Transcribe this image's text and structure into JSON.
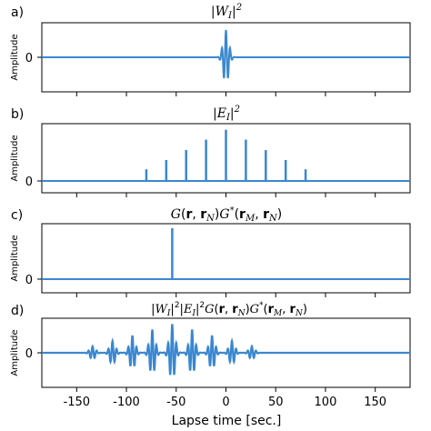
{
  "chart_data": [
    {
      "type": "line",
      "panel_label": "a)",
      "title": "|W_I|^2",
      "ylabel": "Amplitude",
      "yticks": [
        "0"
      ],
      "xlim": [
        -185,
        185
      ],
      "color": "#3a87d0",
      "wavelet": {
        "center": 0,
        "amplitude": 1.0,
        "period": 4.2,
        "envelope_width": 2.8,
        "scale": 0.55
      }
    },
    {
      "type": "bar",
      "panel_label": "b)",
      "title": "|E_I|^2",
      "ylabel": "Amplitude",
      "yticks": [
        "0"
      ],
      "xlim": [
        -185,
        185
      ],
      "color": "#3a87d0",
      "x": [
        -80,
        -60,
        -40,
        -20,
        0,
        20,
        40,
        60,
        80
      ],
      "values": [
        0.2,
        0.36,
        0.53,
        0.71,
        0.88,
        0.71,
        0.53,
        0.36,
        0.2
      ]
    },
    {
      "type": "bar",
      "panel_label": "c)",
      "title": "G(r, r_N)G*(r_M, r_N)",
      "ylabel": "Amplitude",
      "yticks": [
        "0"
      ],
      "xlim": [
        -185,
        185
      ],
      "color": "#3a87d0",
      "x": [
        -54
      ],
      "values": [
        1.0
      ]
    },
    {
      "type": "line",
      "panel_label": "d)",
      "title": "|W_I|^2|E_I|^2G(r, r_N)G*(r_M, r_N)",
      "ylabel": "Amplitude",
      "yticks": [
        "0"
      ],
      "xlim": [
        -185,
        185
      ],
      "xlabel": "Lapse time [sec.]",
      "xticks": [
        -150,
        -100,
        -50,
        0,
        50,
        100,
        150
      ],
      "xtick_labels": [
        "-150",
        "-100",
        "-50",
        "0",
        "50",
        "100",
        "150"
      ],
      "color": "#3a87d0",
      "wavelet_centers": [
        -134,
        -114,
        -94,
        -74,
        -54,
        -34,
        -14,
        6,
        26
      ],
      "wavelet_amplitudes": [
        0.2,
        0.36,
        0.53,
        0.71,
        0.88,
        0.71,
        0.53,
        0.36,
        0.2
      ]
    }
  ]
}
